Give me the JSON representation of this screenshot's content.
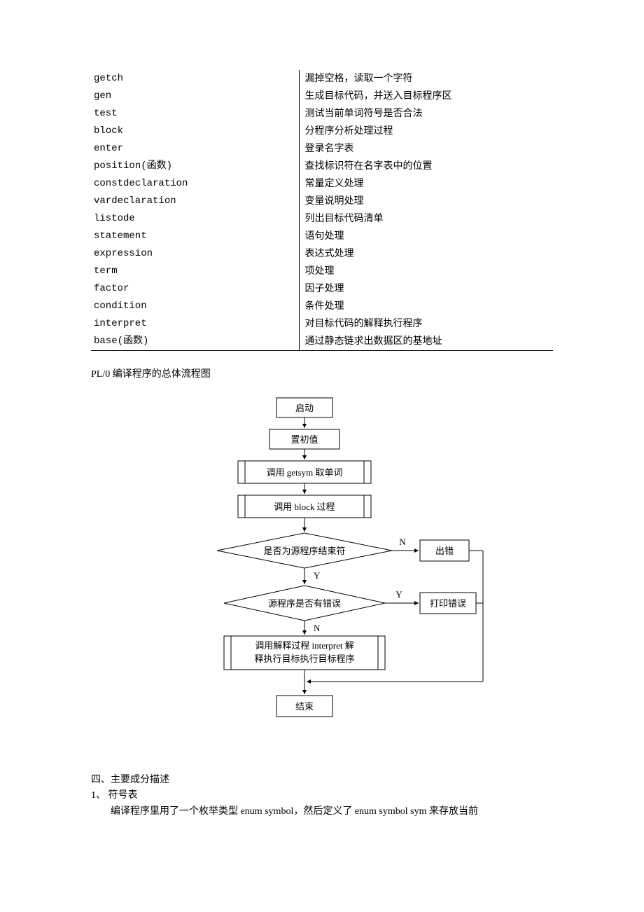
{
  "table": {
    "rows": [
      {
        "l": "getch",
        "r": "漏掉空格，读取一个字符"
      },
      {
        "l": "gen",
        "r": "生成目标代码，并送入目标程序区"
      },
      {
        "l": "test",
        "r": "测试当前单词符号是否合法"
      },
      {
        "l": "block",
        "r": "分程序分析处理过程"
      },
      {
        "l": "enter",
        "r": "登录名字表"
      },
      {
        "l": "position(函数)",
        "r": "查找标识符在名字表中的位置"
      },
      {
        "l": "constdeclaration",
        "r": "常量定义处理"
      },
      {
        "l": "vardeclaration",
        "r": "变量说明处理"
      },
      {
        "l": "listode",
        "r": "列出目标代码清单"
      },
      {
        "l": "statement",
        "r": "语句处理"
      },
      {
        "l": "expression",
        "r": "表达式处理"
      },
      {
        "l": "term",
        "r": "项处理"
      },
      {
        "l": "factor",
        "r": "因子处理"
      },
      {
        "l": "condition",
        "r": "条件处理"
      },
      {
        "l": "interpret",
        "r": "对目标代码的解释执行程序"
      },
      {
        "l": "base(函数)",
        "r": "通过静态链求出数据区的基地址"
      }
    ]
  },
  "caption": "PL/0 编译程序的总体流程图",
  "flow": {
    "start": "启动",
    "init": "置初值",
    "getsym": "调用 getsym 取单词",
    "block": "调用 block 过程",
    "decision1": "是否为源程序结束符",
    "decision2": "源程序是否有错误",
    "error": "出错",
    "print_error": "打印错误",
    "interpret1": "调用解释过程 interpret 解",
    "interpret2": "释执行目标执行目标程序",
    "end": "结束",
    "label_N": "N",
    "label_Y": "Y"
  },
  "section": {
    "heading": "四、主要成分描述",
    "item1": "1、 符号表",
    "para": "编译程序里用了一个枚举类型 enum symbol，然后定义了 enum symbol sym 来存放当前"
  },
  "style": {
    "stroke": "#000000",
    "fill": "#ffffff",
    "stroke_width": 1
  }
}
